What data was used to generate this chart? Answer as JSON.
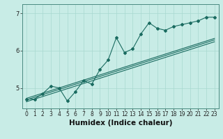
{
  "x": [
    0,
    1,
    2,
    3,
    4,
    5,
    6,
    7,
    8,
    9,
    10,
    11,
    12,
    13,
    14,
    15,
    16,
    17,
    18,
    19,
    20,
    21,
    22,
    23
  ],
  "y_main": [
    4.7,
    4.7,
    4.85,
    5.05,
    5.0,
    4.65,
    4.9,
    5.2,
    5.1,
    5.5,
    5.75,
    6.35,
    5.95,
    6.05,
    6.45,
    6.75,
    6.6,
    6.55,
    6.65,
    6.7,
    6.75,
    6.8,
    6.9,
    6.9
  ],
  "line1": [
    4.72,
    4.79,
    4.86,
    4.93,
    5.0,
    5.07,
    5.14,
    5.21,
    5.28,
    5.35,
    5.42,
    5.49,
    5.56,
    5.63,
    5.7,
    5.77,
    5.84,
    5.91,
    5.98,
    6.05,
    6.12,
    6.19,
    6.26,
    6.33
  ],
  "line2": [
    4.68,
    4.75,
    4.82,
    4.89,
    4.96,
    5.03,
    5.1,
    5.17,
    5.24,
    5.31,
    5.38,
    5.45,
    5.52,
    5.59,
    5.66,
    5.73,
    5.8,
    5.87,
    5.94,
    6.01,
    6.08,
    6.15,
    6.22,
    6.29
  ],
  "line3": [
    4.63,
    4.7,
    4.77,
    4.84,
    4.91,
    4.98,
    5.05,
    5.12,
    5.19,
    5.26,
    5.33,
    5.4,
    5.47,
    5.54,
    5.61,
    5.68,
    5.75,
    5.82,
    5.89,
    5.96,
    6.03,
    6.1,
    6.17,
    6.24
  ],
  "ylim": [
    4.45,
    7.25
  ],
  "xlim": [
    -0.5,
    23.5
  ],
  "yticks": [
    5,
    6,
    7
  ],
  "xticks": [
    0,
    1,
    2,
    3,
    4,
    5,
    6,
    7,
    8,
    9,
    10,
    11,
    12,
    13,
    14,
    15,
    16,
    17,
    18,
    19,
    20,
    21,
    22,
    23
  ],
  "xlabel": "Humidex (Indice chaleur)",
  "bg_color": "#c8ece6",
  "line_color": "#1a6b60",
  "grid_color": "#a8d8d0",
  "tick_fontsize": 5.5,
  "xlabel_fontsize": 7.5
}
